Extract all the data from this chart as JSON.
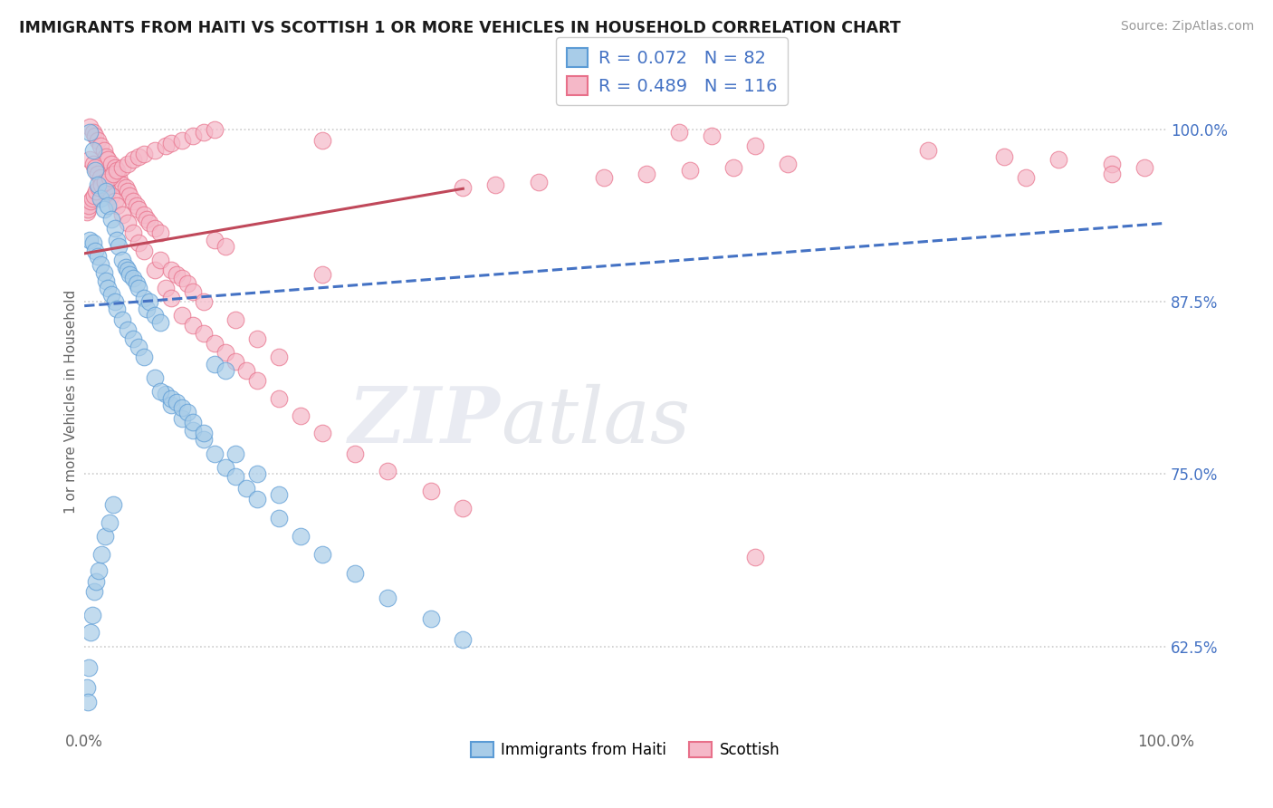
{
  "title": "IMMIGRANTS FROM HAITI VS SCOTTISH 1 OR MORE VEHICLES IN HOUSEHOLD CORRELATION CHART",
  "source": "Source: ZipAtlas.com",
  "ylabel": "1 or more Vehicles in Household",
  "ytick_labels": [
    "62.5%",
    "75.0%",
    "87.5%",
    "100.0%"
  ],
  "ytick_values": [
    0.625,
    0.75,
    0.875,
    1.0
  ],
  "xmin": 0.0,
  "xmax": 1.0,
  "ymin": 0.565,
  "ymax": 1.04,
  "haiti_color": "#a8cce8",
  "scottish_color": "#f5b8c8",
  "haiti_edge_color": "#5b9bd5",
  "scottish_edge_color": "#e8708a",
  "haiti_line_color": "#4472c4",
  "scottish_line_color": "#c0485a",
  "legend_haiti_R": "0.072",
  "legend_haiti_N": "82",
  "legend_scottish_R": "0.489",
  "legend_scottish_N": "116",
  "watermark_zip": "ZIP",
  "watermark_atlas": "atlas",
  "bg_color": "#ffffff",
  "grid_color": "#cccccc",
  "haiti_line_x0": 0.0,
  "haiti_line_y0": 0.872,
  "haiti_line_x1": 1.0,
  "haiti_line_y1": 0.932,
  "scottish_line_x0": 0.0,
  "scottish_line_y0": 0.91,
  "scottish_line_x1": 0.35,
  "scottish_line_y1": 0.957,
  "haiti_scatter_x": [
    0.005,
    0.008,
    0.01,
    0.012,
    0.015,
    0.018,
    0.02,
    0.022,
    0.025,
    0.028,
    0.03,
    0.032,
    0.035,
    0.038,
    0.04,
    0.042,
    0.045,
    0.048,
    0.05,
    0.055,
    0.058,
    0.06,
    0.065,
    0.07,
    0.005,
    0.008,
    0.01,
    0.012,
    0.015,
    0.018,
    0.02,
    0.022,
    0.025,
    0.028,
    0.03,
    0.035,
    0.04,
    0.045,
    0.05,
    0.055,
    0.065,
    0.075,
    0.08,
    0.09,
    0.1,
    0.11,
    0.12,
    0.13,
    0.14,
    0.15,
    0.16,
    0.18,
    0.2,
    0.22,
    0.25,
    0.28,
    0.32,
    0.35,
    0.12,
    0.13,
    0.07,
    0.08,
    0.085,
    0.09,
    0.095,
    0.1,
    0.11,
    0.14,
    0.16,
    0.18,
    0.002,
    0.003,
    0.004,
    0.006,
    0.007,
    0.009,
    0.011,
    0.013,
    0.016,
    0.019,
    0.023,
    0.027
  ],
  "haiti_scatter_y": [
    0.998,
    0.985,
    0.97,
    0.96,
    0.95,
    0.942,
    0.955,
    0.945,
    0.935,
    0.928,
    0.92,
    0.915,
    0.905,
    0.9,
    0.898,
    0.895,
    0.892,
    0.888,
    0.885,
    0.878,
    0.87,
    0.875,
    0.865,
    0.86,
    0.92,
    0.918,
    0.912,
    0.908,
    0.902,
    0.896,
    0.89,
    0.885,
    0.88,
    0.875,
    0.87,
    0.862,
    0.855,
    0.848,
    0.842,
    0.835,
    0.82,
    0.808,
    0.8,
    0.79,
    0.782,
    0.775,
    0.765,
    0.755,
    0.748,
    0.74,
    0.732,
    0.718,
    0.705,
    0.692,
    0.678,
    0.66,
    0.645,
    0.63,
    0.83,
    0.825,
    0.81,
    0.805,
    0.802,
    0.798,
    0.795,
    0.788,
    0.78,
    0.765,
    0.75,
    0.735,
    0.595,
    0.585,
    0.61,
    0.635,
    0.648,
    0.665,
    0.672,
    0.68,
    0.692,
    0.705,
    0.715,
    0.728
  ],
  "scottish_scatter_x": [
    0.005,
    0.008,
    0.01,
    0.012,
    0.015,
    0.018,
    0.02,
    0.022,
    0.025,
    0.028,
    0.03,
    0.032,
    0.035,
    0.038,
    0.04,
    0.042,
    0.045,
    0.048,
    0.05,
    0.055,
    0.058,
    0.06,
    0.065,
    0.07,
    0.005,
    0.008,
    0.01,
    0.012,
    0.015,
    0.018,
    0.02,
    0.022,
    0.025,
    0.028,
    0.03,
    0.035,
    0.04,
    0.045,
    0.05,
    0.055,
    0.065,
    0.075,
    0.08,
    0.09,
    0.1,
    0.11,
    0.12,
    0.13,
    0.14,
    0.15,
    0.16,
    0.18,
    0.2,
    0.22,
    0.25,
    0.28,
    0.32,
    0.35,
    0.12,
    0.13,
    0.07,
    0.08,
    0.085,
    0.09,
    0.095,
    0.1,
    0.11,
    0.14,
    0.16,
    0.18,
    0.002,
    0.003,
    0.004,
    0.006,
    0.007,
    0.009,
    0.011,
    0.013,
    0.016,
    0.019,
    0.023,
    0.027,
    0.03,
    0.035,
    0.04,
    0.045,
    0.05,
    0.055,
    0.065,
    0.075,
    0.08,
    0.09,
    0.1,
    0.11,
    0.12,
    0.55,
    0.58,
    0.22,
    0.62,
    0.78,
    0.85,
    0.9,
    0.95,
    0.98,
    0.95,
    0.87,
    0.62,
    0.22,
    0.35,
    0.38,
    0.42,
    0.48,
    0.52,
    0.56,
    0.6,
    0.65
  ],
  "scottish_scatter_y": [
    1.002,
    0.998,
    0.995,
    0.992,
    0.988,
    0.985,
    0.98,
    0.978,
    0.975,
    0.972,
    0.968,
    0.965,
    0.96,
    0.958,
    0.955,
    0.952,
    0.948,
    0.945,
    0.942,
    0.938,
    0.935,
    0.932,
    0.928,
    0.925,
    0.978,
    0.975,
    0.972,
    0.968,
    0.965,
    0.962,
    0.958,
    0.955,
    0.952,
    0.948,
    0.945,
    0.938,
    0.932,
    0.925,
    0.918,
    0.912,
    0.898,
    0.885,
    0.878,
    0.865,
    0.858,
    0.852,
    0.845,
    0.838,
    0.832,
    0.825,
    0.818,
    0.805,
    0.792,
    0.78,
    0.765,
    0.752,
    0.738,
    0.725,
    0.92,
    0.915,
    0.905,
    0.898,
    0.895,
    0.892,
    0.888,
    0.882,
    0.875,
    0.862,
    0.848,
    0.835,
    0.94,
    0.942,
    0.945,
    0.948,
    0.95,
    0.952,
    0.955,
    0.958,
    0.96,
    0.962,
    0.965,
    0.968,
    0.97,
    0.972,
    0.975,
    0.978,
    0.98,
    0.982,
    0.985,
    0.988,
    0.99,
    0.992,
    0.995,
    0.998,
    1.0,
    0.998,
    0.995,
    0.992,
    0.988,
    0.985,
    0.98,
    0.978,
    0.975,
    0.972,
    0.968,
    0.965,
    0.69,
    0.895,
    0.958,
    0.96,
    0.962,
    0.965,
    0.968,
    0.97,
    0.972,
    0.975
  ]
}
